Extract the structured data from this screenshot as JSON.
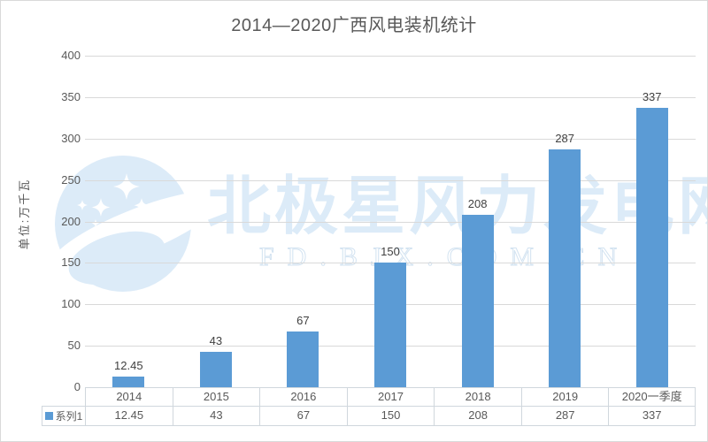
{
  "page": {
    "title": "2014—2020广西风电装机统计",
    "y_axis_title": "单位:万千瓦"
  },
  "watermark": {
    "logo": "polaris-moon-stars-logo",
    "main_text": "北极星风力发电网",
    "sub_text": "FD.BJX.COM.CN",
    "color": "#dcebf8"
  },
  "legend": {
    "series_label": "系列1",
    "marker_color": "#5b9bd5"
  },
  "chart_data": {
    "type": "bar",
    "title": "2014—2020广西风电装机统计",
    "xlabel": "",
    "ylabel": "单位:万千瓦",
    "categories": [
      "2014",
      "2015",
      "2016",
      "2017",
      "2018",
      "2019",
      "2020一季度"
    ],
    "series": [
      {
        "name": "系列1",
        "values": [
          12.45,
          43,
          67,
          150,
          208,
          287,
          337
        ]
      }
    ],
    "data_labels": [
      "12.45",
      "43",
      "67",
      "150",
      "208",
      "287",
      "337"
    ],
    "ylim": [
      0,
      400
    ],
    "ytick_step": 50,
    "grid": true,
    "legend_position": "bottom-table",
    "bar_color": "#5b9bd5",
    "gridline_color": "#d9d9d9",
    "axis_text_color": "#595959"
  }
}
